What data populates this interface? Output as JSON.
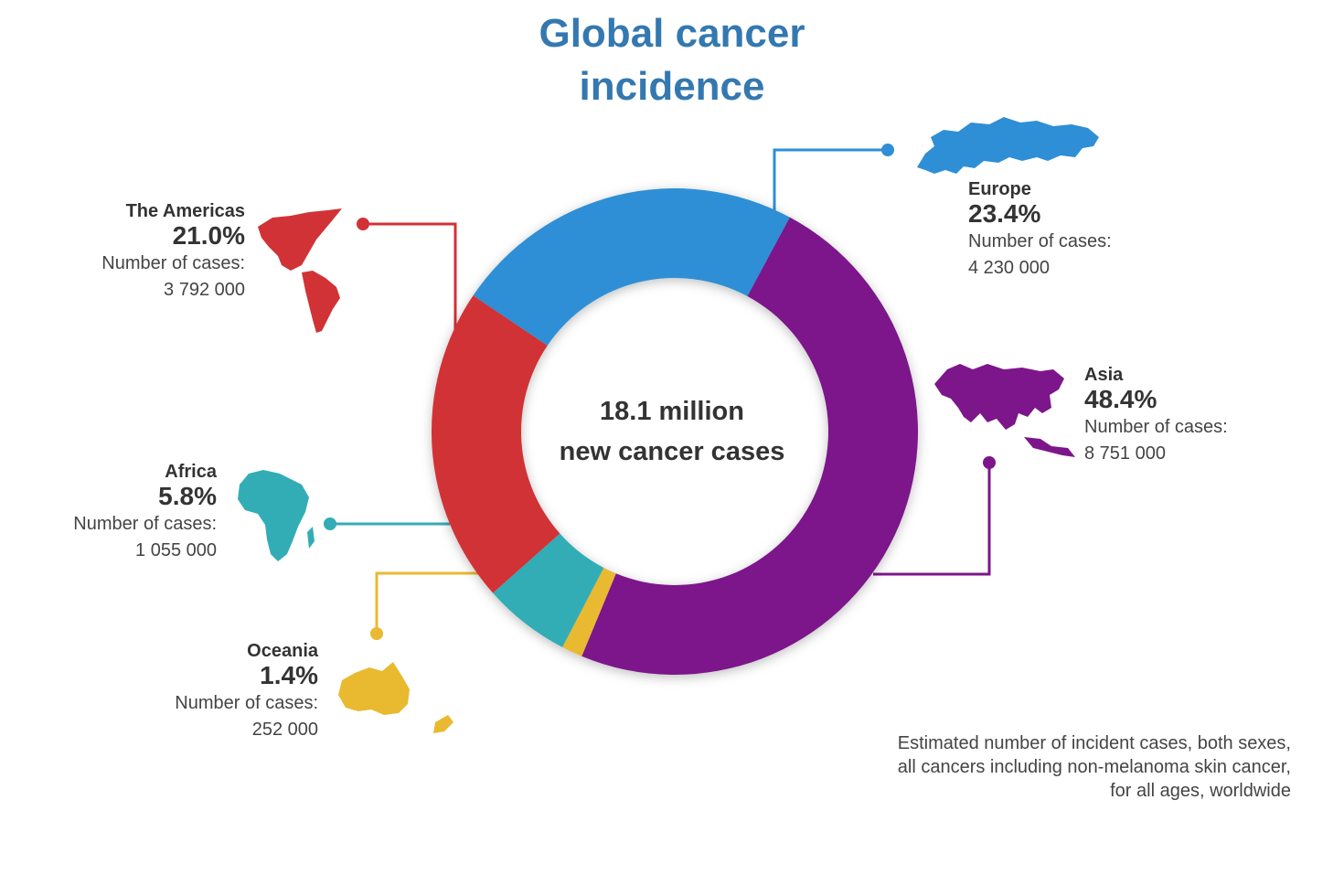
{
  "title": {
    "line1": "Global cancer",
    "line2": "incidence"
  },
  "center": {
    "line1": "18.1 million",
    "line2": "new cancer cases"
  },
  "footnote": {
    "line1": "Estimated number of incident cases, both sexes,",
    "line2": "all cancers including non-melanoma skin cancer,",
    "line3": "for all ages, worldwide"
  },
  "regions": {
    "europe": {
      "name": "Europe",
      "percent": "23.4%",
      "caption": "Number of cases:",
      "cases": "4 230 000"
    },
    "asia": {
      "name": "Asia",
      "percent": "48.4%",
      "caption": "Number of cases:",
      "cases": "8 751 000"
    },
    "americas": {
      "name": "The Americas",
      "percent": "21.0%",
      "caption": "Number of cases:",
      "cases": "3 792 000"
    },
    "africa": {
      "name": "Africa",
      "percent": "5.8%",
      "caption": "Number of cases:",
      "cases": "1 055 000"
    },
    "oceania": {
      "name": "Oceania",
      "percent": "1.4%",
      "caption": "Number of cases:",
      "cases": "252 000"
    }
  },
  "colors": {
    "title": "#3478b0",
    "europe": "#2e8fd6",
    "asia": "#7c168a",
    "americas": "#d13235",
    "africa": "#33adb5",
    "oceania": "#e9b930"
  },
  "chart_data": {
    "type": "pie",
    "title": "Global cancer incidence",
    "categories": [
      "Europe",
      "Asia",
      "Oceania",
      "Africa",
      "The Americas"
    ],
    "values": [
      23.4,
      48.4,
      1.4,
      5.8,
      21.0
    ],
    "cases": [
      4230000,
      8751000,
      252000,
      1055000,
      3792000
    ],
    "colors": [
      "#2e8fd6",
      "#7c168a",
      "#e9b930",
      "#33adb5",
      "#d13235"
    ],
    "donut": true,
    "legend": "none"
  }
}
